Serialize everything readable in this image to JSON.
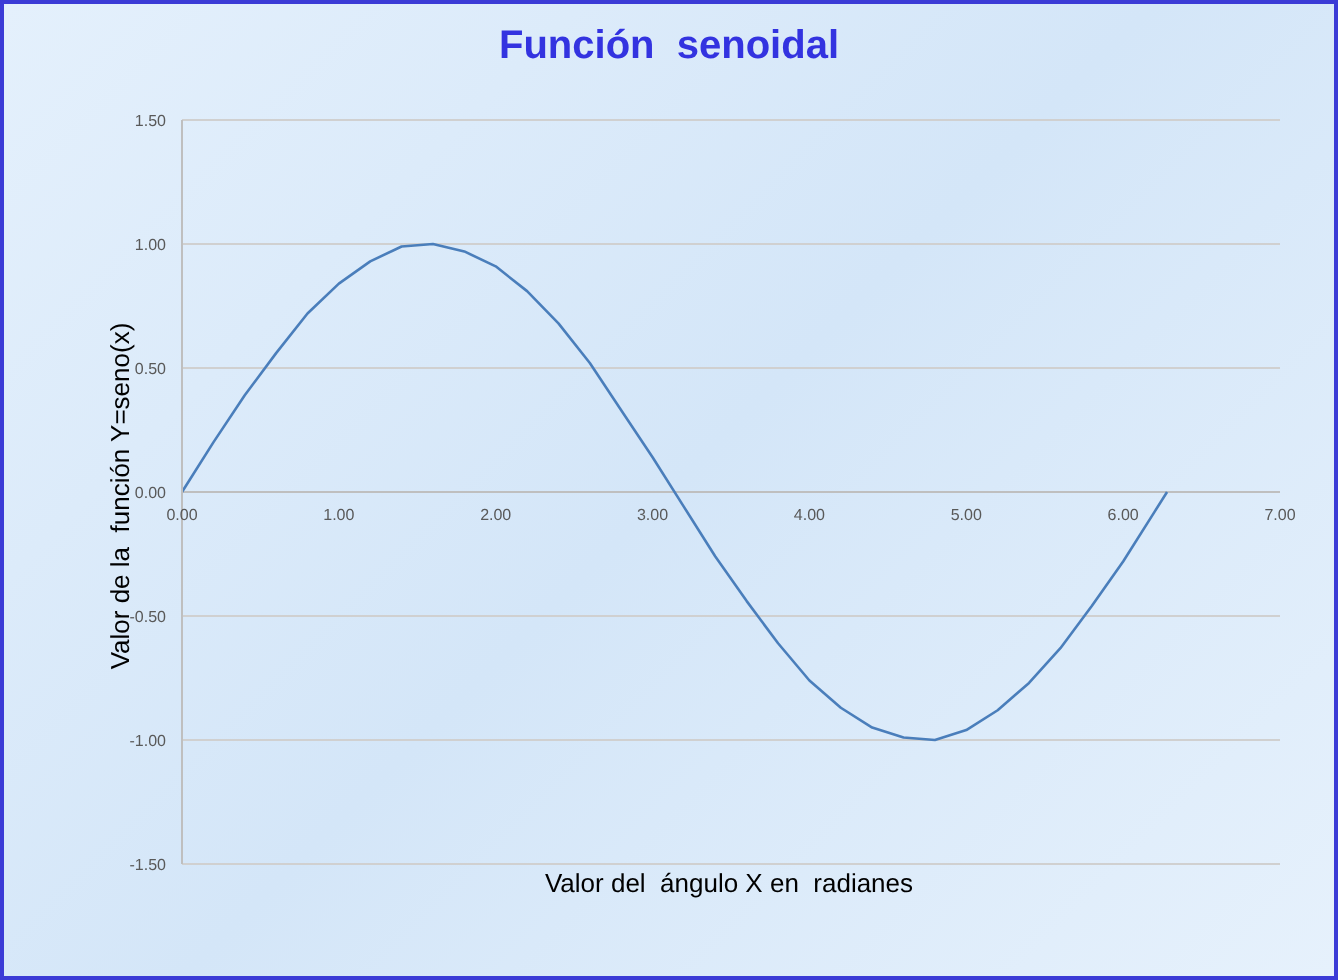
{
  "chart_data": {
    "type": "line",
    "title": "Función  senoidal",
    "xlabel": "Valor del  ángulo X en  radianes",
    "ylabel": "Valor de la  función Y=seno(x)",
    "x": [
      0,
      0.2,
      0.4,
      0.6,
      0.8,
      1.0,
      1.2,
      1.4,
      1.6,
      1.8,
      2.0,
      2.2,
      2.4,
      2.6,
      2.8,
      3.0,
      3.2,
      3.4,
      3.6,
      3.8,
      4.0,
      4.2,
      4.4,
      4.6,
      4.8,
      5.0,
      5.2,
      5.4,
      5.6,
      5.8,
      6.0,
      6.2,
      6.28
    ],
    "series": [
      {
        "color": "#4a7ebb",
        "values": [
          0,
          0.2,
          0.39,
          0.56,
          0.72,
          0.84,
          0.93,
          0.99,
          1.0,
          0.97,
          0.91,
          0.81,
          0.68,
          0.52,
          0.33,
          0.14,
          -0.06,
          -0.26,
          -0.44,
          -0.61,
          -0.76,
          -0.87,
          -0.95,
          -0.99,
          -1.0,
          -0.96,
          -0.88,
          -0.77,
          -0.63,
          -0.46,
          -0.28,
          -0.08,
          0
        ]
      }
    ],
    "xlim": [
      0,
      7
    ],
    "xticks": [
      {
        "value": 0,
        "label": "0.00"
      },
      {
        "value": 1,
        "label": "1.00"
      },
      {
        "value": 2,
        "label": "2.00"
      },
      {
        "value": 3,
        "label": "3.00"
      },
      {
        "value": 4,
        "label": "4.00"
      },
      {
        "value": 5,
        "label": "5.00"
      },
      {
        "value": 6,
        "label": "6.00"
      },
      {
        "value": 7,
        "label": "7.00"
      }
    ],
    "ylim": [
      -1.5,
      1.5
    ],
    "yticks": [
      {
        "value": -1.5,
        "label": "-1.50"
      },
      {
        "value": -1,
        "label": "-1.00"
      },
      {
        "value": -0.5,
        "label": "-0.50"
      },
      {
        "value": 0,
        "label": "0.00"
      },
      {
        "value": 0.5,
        "label": "0.50"
      },
      {
        "value": 1,
        "label": "1.00"
      },
      {
        "value": 1.5,
        "label": "1.50"
      }
    ],
    "grid": "y",
    "marker": "none",
    "line_style": "solid",
    "legend": false
  }
}
